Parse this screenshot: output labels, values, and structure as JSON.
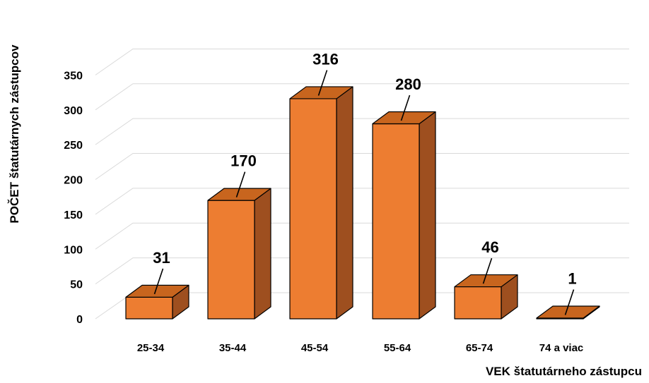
{
  "chart_data": {
    "type": "bar",
    "categories": [
      "25-34",
      "35-44",
      "45-54",
      "55-64",
      "65-74",
      "74 a viac"
    ],
    "values": [
      31,
      170,
      316,
      280,
      46,
      1
    ],
    "xlabel": "VEK štatutárneho zástupcu",
    "ylabel": "POČET štatutárnych zástupcov",
    "ylim": [
      0,
      350
    ],
    "yticks": [
      0,
      50,
      100,
      150,
      200,
      250,
      300,
      350
    ],
    "grid": true,
    "legend": "none",
    "three_d": true,
    "colors": {
      "front": "#ed7d31",
      "side": "#9e4f1f",
      "top": "#c8651e",
      "grid": "#d9d9d9"
    }
  }
}
